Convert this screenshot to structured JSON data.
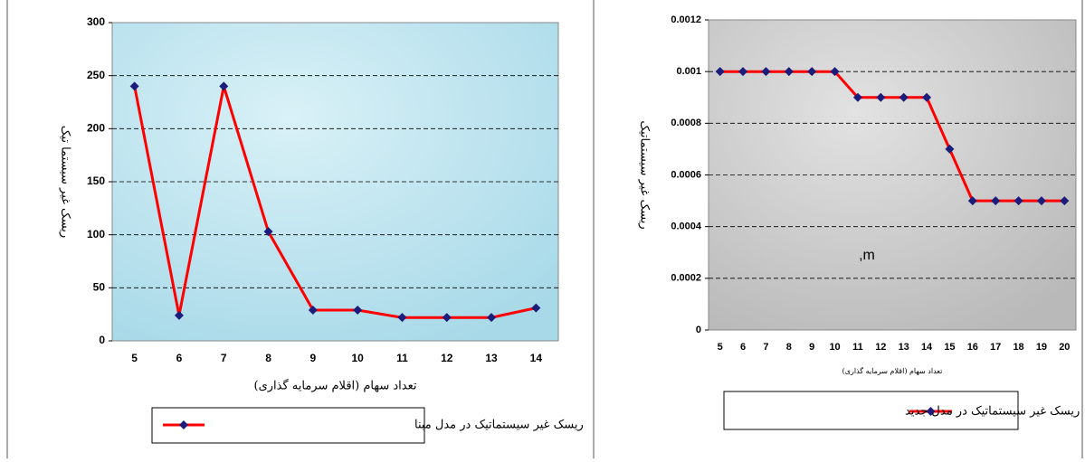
{
  "chart_data": [
    {
      "type": "line",
      "y_label": "ریسک غیر سیستما تیک",
      "x_label": "تعداد سهام (اقلام سرمایه گذاری)",
      "categories": [
        5,
        6,
        7,
        8,
        9,
        10,
        11,
        12,
        13,
        14
      ],
      "series": [
        {
          "name": "ریسک غیر سیستماتیک در مدل مبنا",
          "color": "#ff0000",
          "marker_color": "#1c1c7a",
          "values": [
            240,
            24,
            240,
            103,
            29,
            29,
            22,
            22,
            22,
            31
          ]
        }
      ],
      "ylim": [
        0,
        300
      ],
      "yticks": [
        0,
        50,
        100,
        150,
        200,
        250,
        300
      ],
      "grid": true
    },
    {
      "type": "line",
      "y_label": "ریسک غیر سیستماتیک",
      "x_label": "تعداد سهام (اقلام سرمایه گذاری)",
      "annotation": ",m",
      "categories": [
        5,
        6,
        7,
        8,
        9,
        10,
        11,
        12,
        13,
        14,
        15,
        16,
        17,
        18,
        19,
        20
      ],
      "series": [
        {
          "name": "ریسک غیر سیستماتیک در مدل جدید",
          "color": "#ff0000",
          "marker_color": "#1c1c7a",
          "values": [
            0.001,
            0.001,
            0.001,
            0.001,
            0.001,
            0.001,
            0.0009,
            0.0009,
            0.0009,
            0.0009,
            0.0007,
            0.0005,
            0.0005,
            0.0005,
            0.0005,
            0.0005
          ]
        }
      ],
      "ylim": [
        0,
        0.0012
      ],
      "yticks": [
        0,
        0.0002,
        0.0004,
        0.0006,
        0.0008,
        0.001,
        0.0012
      ],
      "grid": true
    }
  ]
}
